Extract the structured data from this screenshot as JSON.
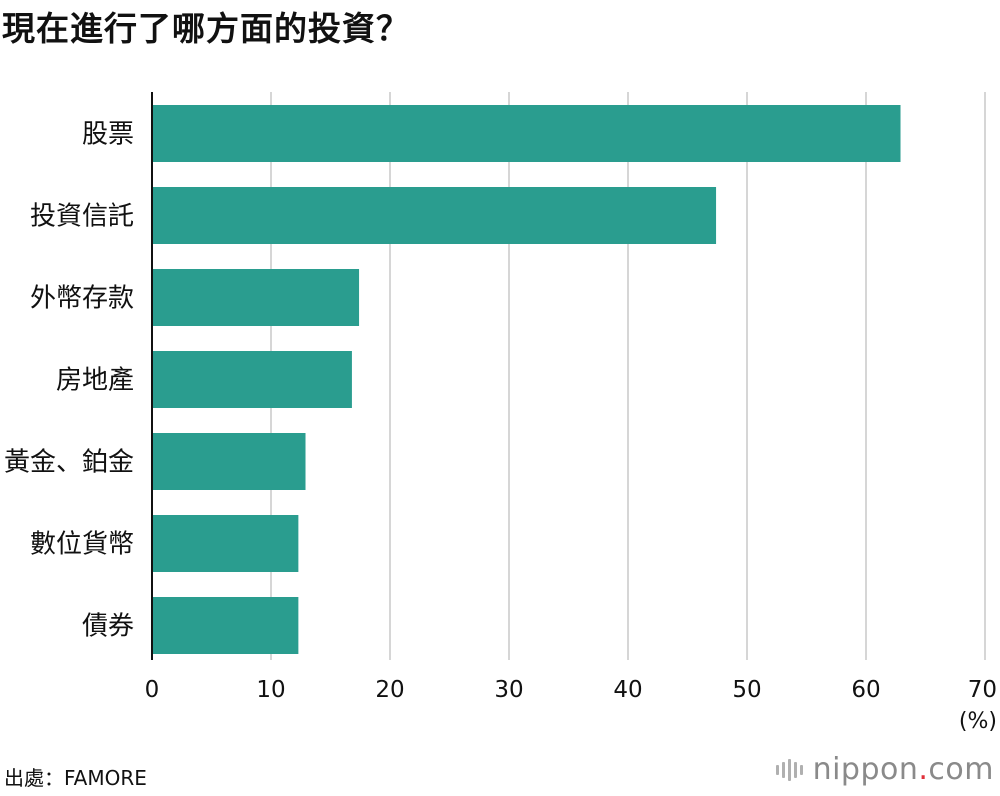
{
  "header": {
    "title": "現在進行了哪方面的投資？"
  },
  "chart_data": {
    "type": "bar",
    "orientation": "horizontal",
    "title": "現在進行了哪方面的投資？",
    "categories": [
      "股票",
      "投資信託",
      "外幣存款",
      "房地產",
      "黃金、鉑金",
      "數位貨幣",
      "債券"
    ],
    "values": [
      62.9,
      47.4,
      17.4,
      16.8,
      12.9,
      12.3,
      12.3
    ],
    "xlim": [
      0,
      70
    ],
    "xticks": [
      0,
      10,
      20,
      30,
      40,
      50,
      60,
      70
    ],
    "xunit": "(%)",
    "grid": true,
    "legend": "none",
    "bar_color": "#2a9d8f"
  },
  "footer": {
    "source": "出處：FAMORE",
    "logo": {
      "main": "nippon",
      "dot": ".",
      "suffix": "com",
      "accent_color": "#e0303a"
    }
  }
}
